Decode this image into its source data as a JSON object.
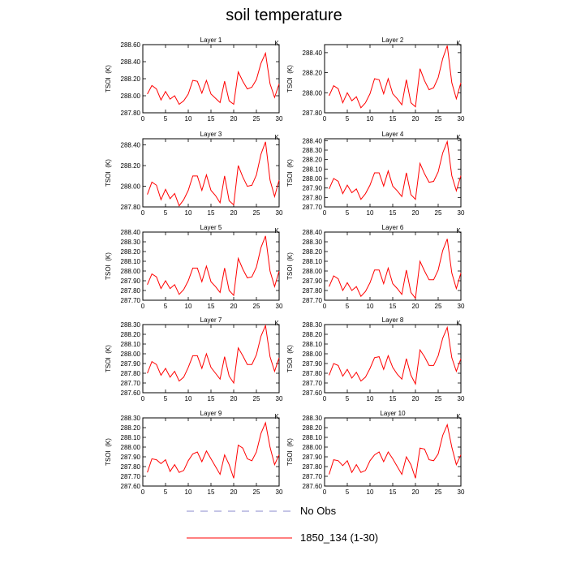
{
  "figure": {
    "title": "soil temperature",
    "legend": [
      {
        "label": "No Obs",
        "color": "#8888cc",
        "dash": "dashed"
      },
      {
        "label": "1850_134 (1-30)",
        "color": "#ff0000",
        "dash": "solid"
      }
    ]
  },
  "chart_data": [
    {
      "type": "line",
      "title": "Layer 1",
      "xlabel": "",
      "ylabel": "TSOI  (K)",
      "units": "K",
      "xlim": [
        0,
        30
      ],
      "xticks": [
        0,
        5,
        10,
        15,
        20,
        25,
        30
      ],
      "ylim": [
        287.8,
        288.6
      ],
      "yticks": [
        "287.80",
        "288.00",
        "288.20",
        "288.40",
        "288.60"
      ],
      "series": [
        {
          "color": "#ff0000",
          "x": [
            1,
            2,
            3,
            4,
            5,
            6,
            7,
            8,
            9,
            10,
            11,
            12,
            13,
            14,
            15,
            16,
            17,
            18,
            19,
            20,
            21,
            22,
            23,
            24,
            25,
            26,
            27,
            28,
            29,
            30
          ],
          "values": [
            288.02,
            288.12,
            288.08,
            287.95,
            288.05,
            287.96,
            288.0,
            287.9,
            287.94,
            288.02,
            288.18,
            288.17,
            288.03,
            288.18,
            288.02,
            287.97,
            287.92,
            288.17,
            287.94,
            287.9,
            288.28,
            288.17,
            288.08,
            288.1,
            288.19,
            288.38,
            288.5,
            288.14,
            287.98,
            288.14
          ]
        }
      ]
    },
    {
      "type": "line",
      "title": "Layer 2",
      "xlabel": "",
      "ylabel": "TSOI  (K)",
      "units": "K",
      "xlim": [
        0,
        30
      ],
      "xticks": [
        0,
        5,
        10,
        15,
        20,
        25,
        30
      ],
      "ylim": [
        287.8,
        288.48
      ],
      "yticks": [
        "287.80",
        "288.00",
        "288.20",
        "288.40"
      ],
      "series": [
        {
          "color": "#ff0000",
          "x": [
            1,
            2,
            3,
            4,
            5,
            6,
            7,
            8,
            9,
            10,
            11,
            12,
            13,
            14,
            15,
            16,
            17,
            18,
            19,
            20,
            21,
            22,
            23,
            24,
            25,
            26,
            27,
            28,
            29,
            30
          ],
          "values": [
            287.97,
            288.07,
            288.04,
            287.9,
            288.0,
            287.92,
            287.96,
            287.85,
            287.9,
            287.99,
            288.14,
            288.13,
            287.99,
            288.14,
            287.99,
            287.94,
            287.88,
            288.13,
            287.9,
            287.86,
            288.24,
            288.12,
            288.03,
            288.05,
            288.15,
            288.34,
            288.47,
            288.1,
            287.94,
            288.1
          ]
        }
      ]
    },
    {
      "type": "line",
      "title": "Layer 3",
      "xlabel": "",
      "ylabel": "TSOI  (K)",
      "units": "K",
      "xlim": [
        0,
        30
      ],
      "xticks": [
        0,
        5,
        10,
        15,
        20,
        25,
        30
      ],
      "ylim": [
        287.8,
        288.46
      ],
      "yticks": [
        "287.80",
        "288.00",
        "288.20",
        "288.40"
      ],
      "series": [
        {
          "color": "#ff0000",
          "x": [
            1,
            2,
            3,
            4,
            5,
            6,
            7,
            8,
            9,
            10,
            11,
            12,
            13,
            14,
            15,
            16,
            17,
            18,
            19,
            20,
            21,
            22,
            23,
            24,
            25,
            26,
            27,
            28,
            29,
            30
          ],
          "values": [
            287.92,
            288.04,
            288.01,
            287.87,
            287.97,
            287.88,
            287.93,
            287.81,
            287.87,
            287.96,
            288.1,
            288.1,
            287.96,
            288.11,
            287.96,
            287.91,
            287.84,
            288.1,
            287.86,
            287.82,
            288.2,
            288.09,
            288.0,
            288.01,
            288.11,
            288.31,
            288.43,
            288.06,
            287.9,
            288.06
          ]
        }
      ]
    },
    {
      "type": "line",
      "title": "Layer 4",
      "xlabel": "",
      "ylabel": "TSOI  (K)",
      "units": "K",
      "xlim": [
        0,
        30
      ],
      "xticks": [
        0,
        5,
        10,
        15,
        20,
        25,
        30
      ],
      "ylim": [
        287.7,
        288.42
      ],
      "yticks": [
        "287.70",
        "287.80",
        "287.90",
        "288.00",
        "288.10",
        "288.20",
        "288.30",
        "288.40"
      ],
      "series": [
        {
          "color": "#ff0000",
          "x": [
            1,
            2,
            3,
            4,
            5,
            6,
            7,
            8,
            9,
            10,
            11,
            12,
            13,
            14,
            15,
            16,
            17,
            18,
            19,
            20,
            21,
            22,
            23,
            24,
            25,
            26,
            27,
            28,
            29,
            30
          ],
          "values": [
            287.89,
            288.0,
            287.97,
            287.84,
            287.93,
            287.85,
            287.89,
            287.78,
            287.84,
            287.93,
            288.06,
            288.06,
            287.92,
            288.08,
            287.92,
            287.87,
            287.81,
            288.06,
            287.83,
            287.78,
            288.16,
            288.05,
            287.96,
            287.97,
            288.07,
            288.27,
            288.39,
            288.03,
            287.87,
            288.03
          ]
        }
      ]
    },
    {
      "type": "line",
      "title": "Layer 5",
      "xlabel": "",
      "ylabel": "TSOI  (K)",
      "units": "K",
      "xlim": [
        0,
        30
      ],
      "xticks": [
        0,
        5,
        10,
        15,
        20,
        25,
        30
      ],
      "ylim": [
        287.7,
        288.4
      ],
      "yticks": [
        "287.70",
        "287.80",
        "287.90",
        "288.00",
        "288.10",
        "288.20",
        "288.30",
        "288.40"
      ],
      "series": [
        {
          "color": "#ff0000",
          "x": [
            1,
            2,
            3,
            4,
            5,
            6,
            7,
            8,
            9,
            10,
            11,
            12,
            13,
            14,
            15,
            16,
            17,
            18,
            19,
            20,
            21,
            22,
            23,
            24,
            25,
            26,
            27,
            28,
            29,
            30
          ],
          "values": [
            287.86,
            287.97,
            287.94,
            287.82,
            287.9,
            287.82,
            287.86,
            287.76,
            287.81,
            287.9,
            288.03,
            288.03,
            287.89,
            288.05,
            287.89,
            287.84,
            287.78,
            288.03,
            287.8,
            287.75,
            288.13,
            288.02,
            287.93,
            287.94,
            288.04,
            288.24,
            288.36,
            288.0,
            287.84,
            288.0
          ]
        }
      ]
    },
    {
      "type": "line",
      "title": "Layer 6",
      "xlabel": "",
      "ylabel": "TSOI  (K)",
      "units": "K",
      "xlim": [
        0,
        30
      ],
      "xticks": [
        0,
        5,
        10,
        15,
        20,
        25,
        30
      ],
      "ylim": [
        287.7,
        288.4
      ],
      "yticks": [
        "287.70",
        "287.80",
        "287.90",
        "288.00",
        "288.10",
        "288.20",
        "288.30",
        "288.40"
      ],
      "series": [
        {
          "color": "#ff0000",
          "x": [
            1,
            2,
            3,
            4,
            5,
            6,
            7,
            8,
            9,
            10,
            11,
            12,
            13,
            14,
            15,
            16,
            17,
            18,
            19,
            20,
            21,
            22,
            23,
            24,
            25,
            26,
            27,
            28,
            29,
            30
          ],
          "values": [
            287.84,
            287.95,
            287.92,
            287.8,
            287.88,
            287.8,
            287.84,
            287.74,
            287.79,
            287.88,
            288.01,
            288.01,
            287.87,
            288.03,
            287.87,
            287.82,
            287.76,
            288.01,
            287.78,
            287.72,
            288.1,
            288.0,
            287.91,
            287.91,
            288.01,
            288.21,
            288.33,
            287.98,
            287.82,
            287.98
          ]
        }
      ]
    },
    {
      "type": "line",
      "title": "Layer 7",
      "xlabel": "",
      "ylabel": "TSOI  (K)",
      "units": "K",
      "xlim": [
        0,
        30
      ],
      "xticks": [
        0,
        5,
        10,
        15,
        20,
        25,
        30
      ],
      "ylim": [
        287.6,
        288.3
      ],
      "yticks": [
        "287.60",
        "287.70",
        "287.80",
        "287.90",
        "288.00",
        "288.10",
        "288.20",
        "288.30"
      ],
      "series": [
        {
          "color": "#ff0000",
          "x": [
            1,
            2,
            3,
            4,
            5,
            6,
            7,
            8,
            9,
            10,
            11,
            12,
            13,
            14,
            15,
            16,
            17,
            18,
            19,
            20,
            21,
            22,
            23,
            24,
            25,
            26,
            27,
            28,
            29,
            30
          ],
          "values": [
            287.8,
            287.92,
            287.89,
            287.78,
            287.85,
            287.76,
            287.82,
            287.72,
            287.76,
            287.86,
            287.98,
            287.98,
            287.85,
            288.0,
            287.86,
            287.8,
            287.74,
            287.97,
            287.77,
            287.7,
            288.06,
            287.98,
            287.89,
            287.89,
            287.99,
            288.18,
            288.29,
            287.97,
            287.82,
            287.96
          ]
        }
      ]
    },
    {
      "type": "line",
      "title": "Layer 8",
      "xlabel": "",
      "ylabel": "TSOI  (K)",
      "units": "K",
      "xlim": [
        0,
        30
      ],
      "xticks": [
        0,
        5,
        10,
        15,
        20,
        25,
        30
      ],
      "ylim": [
        287.6,
        288.3
      ],
      "yticks": [
        "287.60",
        "287.70",
        "287.80",
        "287.90",
        "288.00",
        "288.10",
        "288.20",
        "288.30"
      ],
      "series": [
        {
          "color": "#ff0000",
          "x": [
            1,
            2,
            3,
            4,
            5,
            6,
            7,
            8,
            9,
            10,
            11,
            12,
            13,
            14,
            15,
            16,
            17,
            18,
            19,
            20,
            21,
            22,
            23,
            24,
            25,
            26,
            27,
            28,
            29,
            30
          ],
          "values": [
            287.78,
            287.9,
            287.88,
            287.77,
            287.84,
            287.75,
            287.81,
            287.72,
            287.76,
            287.85,
            287.96,
            287.97,
            287.84,
            287.98,
            287.86,
            287.79,
            287.74,
            287.95,
            287.78,
            287.69,
            288.04,
            287.97,
            287.88,
            287.88,
            287.98,
            288.16,
            288.27,
            287.96,
            287.82,
            287.95
          ]
        }
      ]
    },
    {
      "type": "line",
      "title": "Layer 9",
      "xlabel": "",
      "ylabel": "TSOI  (K)",
      "units": "K",
      "xlim": [
        0,
        30
      ],
      "xticks": [
        0,
        5,
        10,
        15,
        20,
        25,
        30
      ],
      "ylim": [
        287.6,
        288.3
      ],
      "yticks": [
        "287.60",
        "287.70",
        "287.80",
        "287.90",
        "288.00",
        "288.10",
        "288.20",
        "288.30"
      ],
      "series": [
        {
          "color": "#ff0000",
          "x": [
            1,
            2,
            3,
            4,
            5,
            6,
            7,
            8,
            9,
            10,
            11,
            12,
            13,
            14,
            15,
            16,
            17,
            18,
            19,
            20,
            21,
            22,
            23,
            24,
            25,
            26,
            27,
            28,
            29,
            30
          ],
          "values": [
            287.74,
            287.88,
            287.87,
            287.83,
            287.87,
            287.75,
            287.82,
            287.74,
            287.76,
            287.86,
            287.93,
            287.95,
            287.85,
            287.96,
            287.88,
            287.8,
            287.72,
            287.92,
            287.82,
            287.68,
            288.02,
            287.99,
            287.88,
            287.86,
            287.95,
            288.14,
            288.25,
            288.0,
            287.82,
            287.92
          ]
        }
      ]
    },
    {
      "type": "line",
      "title": "Layer 10",
      "xlabel": "",
      "ylabel": "TSOI  (K)",
      "units": "K",
      "xlim": [
        0,
        30
      ],
      "xticks": [
        0,
        5,
        10,
        15,
        20,
        25,
        30
      ],
      "ylim": [
        287.6,
        288.3
      ],
      "yticks": [
        "287.60",
        "287.70",
        "287.80",
        "287.90",
        "288.00",
        "288.10",
        "288.20",
        "288.30"
      ],
      "series": [
        {
          "color": "#ff0000",
          "x": [
            1,
            2,
            3,
            4,
            5,
            6,
            7,
            8,
            9,
            10,
            11,
            12,
            13,
            14,
            15,
            16,
            17,
            18,
            19,
            20,
            21,
            22,
            23,
            24,
            25,
            26,
            27,
            28,
            29,
            30
          ],
          "values": [
            287.72,
            287.87,
            287.86,
            287.81,
            287.86,
            287.74,
            287.82,
            287.74,
            287.76,
            287.86,
            287.92,
            287.95,
            287.85,
            287.95,
            287.88,
            287.8,
            287.72,
            287.9,
            287.82,
            287.68,
            287.99,
            287.98,
            287.87,
            287.86,
            287.93,
            288.12,
            288.23,
            288.0,
            287.82,
            287.92
          ]
        }
      ]
    }
  ]
}
